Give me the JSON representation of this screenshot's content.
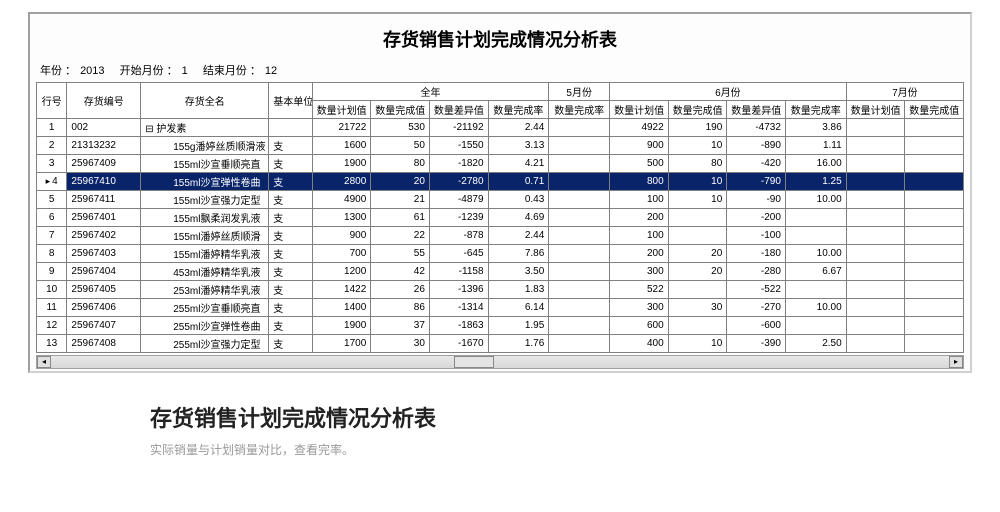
{
  "title": "存货销售计划完成情况分析表",
  "period": {
    "year_label": "年份 ：",
    "year": "2013",
    "start_label": "开始月份 ：",
    "start": "1",
    "end_label": "结束月份 ：",
    "end": "12"
  },
  "header": {
    "row_no": "行号",
    "code": "存货编号",
    "name": "存货全名",
    "unit": "基本单位",
    "groups": {
      "full_year": "全年",
      "m5": "5月份",
      "m6": "6月份",
      "m7": "7月份"
    },
    "sub": {
      "plan": "数量计划值",
      "done": "数量完成值",
      "diff": "数量差异值",
      "rate": "数量完成率"
    }
  },
  "selected_row": 4,
  "rows": [
    {
      "idx": "1",
      "code": "002",
      "name_root": true,
      "name": "护发素",
      "unit": "",
      "fy": [
        "21722",
        "530",
        "-21192",
        "2.44"
      ],
      "m5_rate": "",
      "m6": [
        "4922",
        "190",
        "-4732",
        "3.86"
      ],
      "m7_plan": ""
    },
    {
      "idx": "2",
      "code": "21313232",
      "name": "155g潘婷丝质顺滑液",
      "unit": "支",
      "fy": [
        "1600",
        "50",
        "-1550",
        "3.13"
      ],
      "m5_rate": "",
      "m6": [
        "900",
        "10",
        "-890",
        "1.11"
      ],
      "m7_plan": ""
    },
    {
      "idx": "3",
      "code": "25967409",
      "name": "155ml沙宣垂顺亮直",
      "unit": "支",
      "fy": [
        "1900",
        "80",
        "-1820",
        "4.21"
      ],
      "m5_rate": "",
      "m6": [
        "500",
        "80",
        "-420",
        "16.00"
      ],
      "m7_plan": ""
    },
    {
      "idx": "4",
      "code": "25967410",
      "name": "155ml沙宣弹性卷曲",
      "unit": "支",
      "fy": [
        "2800",
        "20",
        "-2780",
        "0.71"
      ],
      "m5_rate": "",
      "m6": [
        "800",
        "10",
        "-790",
        "1.25"
      ],
      "m7_plan": ""
    },
    {
      "idx": "5",
      "code": "25967411",
      "name": "155ml沙宣强力定型",
      "unit": "支",
      "fy": [
        "4900",
        "21",
        "-4879",
        "0.43"
      ],
      "m5_rate": "",
      "m6": [
        "100",
        "10",
        "-90",
        "10.00"
      ],
      "m7_plan": ""
    },
    {
      "idx": "6",
      "code": "25967401",
      "name": "155ml飘柔润发乳液",
      "unit": "支",
      "fy": [
        "1300",
        "61",
        "-1239",
        "4.69"
      ],
      "m5_rate": "",
      "m6": [
        "200",
        "",
        "-200",
        ""
      ],
      "m7_plan": ""
    },
    {
      "idx": "7",
      "code": "25967402",
      "name": "155ml潘婷丝质顺滑",
      "unit": "支",
      "fy": [
        "900",
        "22",
        "-878",
        "2.44"
      ],
      "m5_rate": "",
      "m6": [
        "100",
        "",
        "-100",
        ""
      ],
      "m7_plan": ""
    },
    {
      "idx": "8",
      "code": "25967403",
      "name": "155ml潘婷精华乳液",
      "unit": "支",
      "fy": [
        "700",
        "55",
        "-645",
        "7.86"
      ],
      "m5_rate": "",
      "m6": [
        "200",
        "20",
        "-180",
        "10.00"
      ],
      "m7_plan": ""
    },
    {
      "idx": "9",
      "code": "25967404",
      "name": "453ml潘婷精华乳液",
      "unit": "支",
      "fy": [
        "1200",
        "42",
        "-1158",
        "3.50"
      ],
      "m5_rate": "",
      "m6": [
        "300",
        "20",
        "-280",
        "6.67"
      ],
      "m7_plan": ""
    },
    {
      "idx": "10",
      "code": "25967405",
      "name": "253ml潘婷精华乳液",
      "unit": "支",
      "fy": [
        "1422",
        "26",
        "-1396",
        "1.83"
      ],
      "m5_rate": "",
      "m6": [
        "522",
        "",
        "-522",
        ""
      ],
      "m7_plan": ""
    },
    {
      "idx": "11",
      "code": "25967406",
      "name": "255ml沙宣垂顺亮直",
      "unit": "支",
      "fy": [
        "1400",
        "86",
        "-1314",
        "6.14"
      ],
      "m5_rate": "",
      "m6": [
        "300",
        "30",
        "-270",
        "10.00"
      ],
      "m7_plan": ""
    },
    {
      "idx": "12",
      "code": "25967407",
      "name": "255ml沙宣弹性卷曲",
      "unit": "支",
      "fy": [
        "1900",
        "37",
        "-1863",
        "1.95"
      ],
      "m5_rate": "",
      "m6": [
        "600",
        "",
        "-600",
        ""
      ],
      "m7_plan": ""
    },
    {
      "idx": "13",
      "code": "25967408",
      "name": "255ml沙宣强力定型",
      "unit": "支",
      "fy": [
        "1700",
        "30",
        "-1670",
        "1.76"
      ],
      "m5_rate": "",
      "m6": [
        "400",
        "10",
        "-390",
        "2.50"
      ],
      "m7_plan": ""
    }
  ],
  "caption": {
    "title": "存货销售计划完成情况分析表",
    "sub": "实际销量与计划销量对比，查看完率。"
  }
}
